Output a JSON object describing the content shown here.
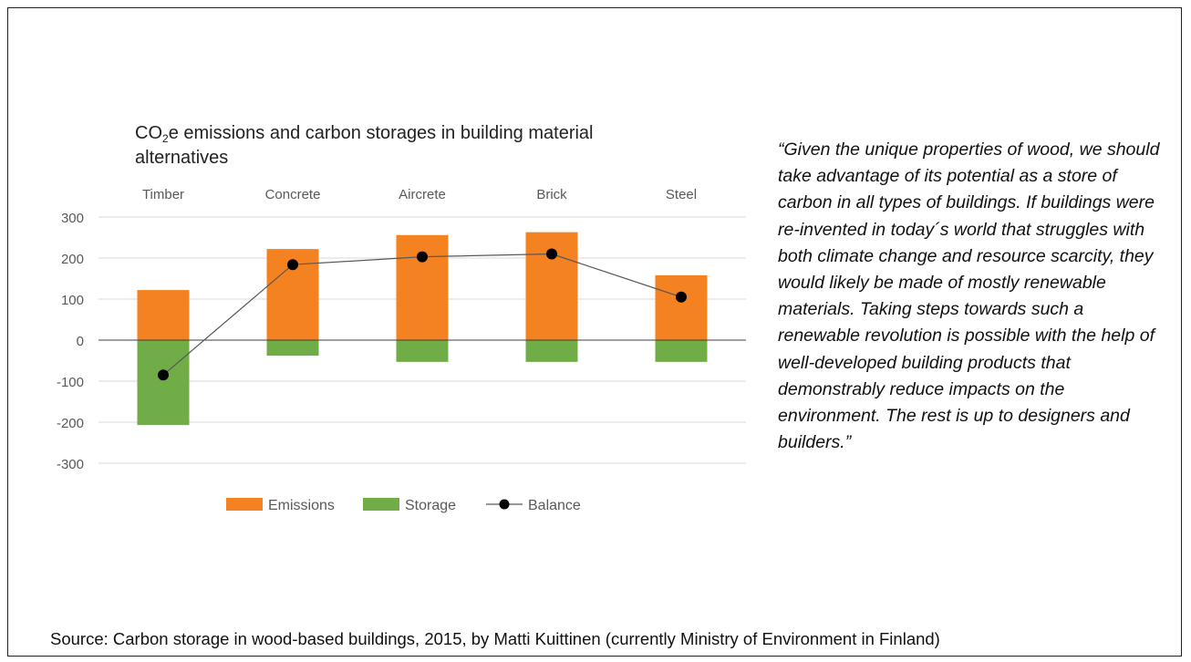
{
  "chart_data": {
    "type": "bar",
    "title": "CO2e emissions and carbon storages in building material alternatives",
    "title_parts": {
      "pre": "CO",
      "sub": "2",
      "post": "e emissions and carbon storages in building material alternatives"
    },
    "categories": [
      "Timber",
      "Concrete",
      "Aircrete",
      "Brick",
      "Steel"
    ],
    "category_axis_position": "top",
    "series": [
      {
        "name": "Emissions",
        "kind": "bar",
        "stacked": true,
        "color": "#F58220",
        "values": [
          122,
          222,
          256,
          263,
          158
        ]
      },
      {
        "name": "Storage",
        "kind": "bar",
        "stacked": true,
        "color": "#70AD47",
        "values": [
          -207,
          -38,
          -53,
          -53,
          -53
        ]
      },
      {
        "name": "Balance",
        "kind": "line",
        "color": "#000000",
        "line_color": "#595959",
        "values": [
          -85,
          184,
          203,
          210,
          105
        ]
      }
    ],
    "ylim": [
      -300,
      300
    ],
    "yticks": [
      "300",
      "200",
      "100",
      "0",
      "-100",
      "-200",
      "-300"
    ],
    "grid": true,
    "legend": "bottom"
  },
  "quote": "“Given the unique properties of wood, we should take advantage of its potential as a store of carbon in all types of buildings. If buildings were re-invented in today´s world that struggles with both climate change and resource scarcity, they would likely be made of mostly renewable materials. Taking steps towards such a renewable revolution is possible with the help of well-developed building products that demonstrably reduce impacts on the environment. The rest is up to designers and builders.”",
  "source": "Source: Carbon storage in wood-based buildings, 2015, by Matti Kuittinen (currently Ministry of Environment in Finland)"
}
